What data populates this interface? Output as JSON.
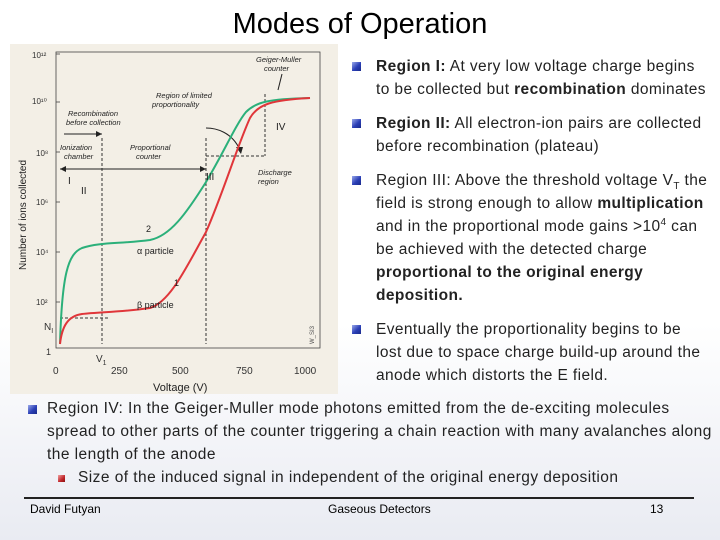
{
  "slide": {
    "title": "Modes of Operation",
    "footer": {
      "author": "David Futyan",
      "course": "Gaseous Detectors",
      "page": "13"
    }
  },
  "bullets": [
    {
      "label": "Region I:",
      "text": " At very low voltage charge begins to be collected but ",
      "em": "recombination",
      "tail": " dominates"
    },
    {
      "label": "Region II:",
      "text": " All electron-ion pairs are collected before recombination (plateau)"
    },
    {
      "parts": [
        "Region III: Above the threshold voltage V",
        "T",
        " the field is strong enough to allow ",
        "multiplication",
        " and in the proportional mode gains >10",
        "4",
        " can be achieved with the detected charge ",
        "proportional to the original energy deposition."
      ]
    },
    {
      "text": "Eventually the proportionality begins to be lost due to space charge build-up around the anode which distorts the E field."
    }
  ],
  "wide_bullet": {
    "text": "Region IV: In the Geiger-Muller mode photons emitted from the de-exciting molecules spread to other parts of the counter triggering a chain reaction with many avalanches along the length of the anode",
    "sub": "Size of the induced signal in independent of the original energy deposition"
  },
  "figure": {
    "xlabel": "Voltage (V)",
    "ylabel": "Number of ions collected",
    "x_ticks": [
      "0",
      "250",
      "500",
      "750",
      "1000"
    ],
    "y_ticks": [
      "10¹²",
      "10¹⁰",
      "10⁸",
      "10⁶",
      "10⁴",
      "10²",
      "1"
    ],
    "y_extra": "N",
    "y_extra_sub": "I",
    "v1_label": "V",
    "v1_sub": "1",
    "regions": [
      "I",
      "II",
      "III",
      "IV"
    ],
    "annotations": {
      "geiger": [
        "Geiger-Muller",
        "counter"
      ],
      "limited": [
        "Region of limited",
        "proportionality"
      ],
      "recomb": [
        "Recombination",
        "before collection"
      ],
      "ion": [
        "Ionization",
        "chamber"
      ],
      "prop": [
        "Proportional",
        "counter"
      ],
      "discharge": [
        "Discharge",
        "region"
      ],
      "alpha": "α particle",
      "beta": "β particle",
      "n2": "2",
      "n1": "1",
      "code": "W_SI3"
    },
    "colors": {
      "alpha": "#2bb07a",
      "beta": "#e0363a",
      "dashed": "#333333"
    }
  },
  "chart_data": {
    "type": "line",
    "xlabel": "Voltage (V)",
    "ylabel": "Number of ions collected",
    "xlim": [
      0,
      1000
    ],
    "ylim_log10": [
      0,
      12
    ],
    "series": [
      {
        "name": "α particle",
        "x": [
          0,
          30,
          80,
          150,
          300,
          450,
          600,
          700,
          760,
          800,
          900,
          1000
        ],
        "log10_y": [
          0,
          3.2,
          4.0,
          4.1,
          4.2,
          4.7,
          6.2,
          8.0,
          9.6,
          10.2,
          10.4,
          10.5
        ]
      },
      {
        "name": "β particle",
        "x": [
          0,
          30,
          80,
          150,
          300,
          450,
          600,
          700,
          760,
          800,
          900,
          1000
        ],
        "log10_y": [
          0,
          1.0,
          1.7,
          1.75,
          1.8,
          2.4,
          4.6,
          6.8,
          9.0,
          10.1,
          10.3,
          10.5
        ]
      }
    ]
  }
}
